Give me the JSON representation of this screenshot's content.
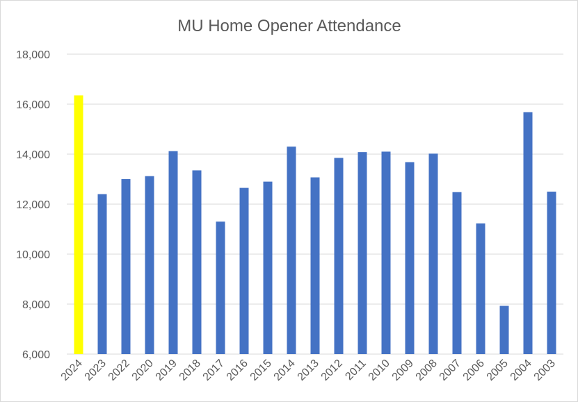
{
  "chart_data": {
    "type": "bar",
    "title": "MU Home Opener Attendance",
    "xlabel": "",
    "ylabel": "",
    "categories": [
      "2024",
      "2023",
      "2022",
      "2020",
      "2019",
      "2018",
      "2017",
      "2016",
      "2015",
      "2014",
      "2013",
      "2012",
      "2011",
      "2010",
      "2009",
      "2008",
      "2007",
      "2006",
      "2005",
      "2004",
      "2003"
    ],
    "values": [
      16350,
      12400,
      13000,
      13120,
      14120,
      13350,
      11300,
      12650,
      12900,
      14300,
      13070,
      13850,
      14080,
      14100,
      13680,
      14020,
      12480,
      11230,
      7930,
      15680,
      12500
    ],
    "highlight_index": 0,
    "ylim": [
      6000,
      18000
    ],
    "yticks": [
      "6,000",
      "8,000",
      "10,000",
      "12,000",
      "14,000",
      "16,000",
      "18,000"
    ],
    "grid": true,
    "colors": {
      "bar": "#4472C4",
      "highlight": "#FFFF00",
      "grid": "#d9d9d9",
      "text": "#595959"
    }
  }
}
